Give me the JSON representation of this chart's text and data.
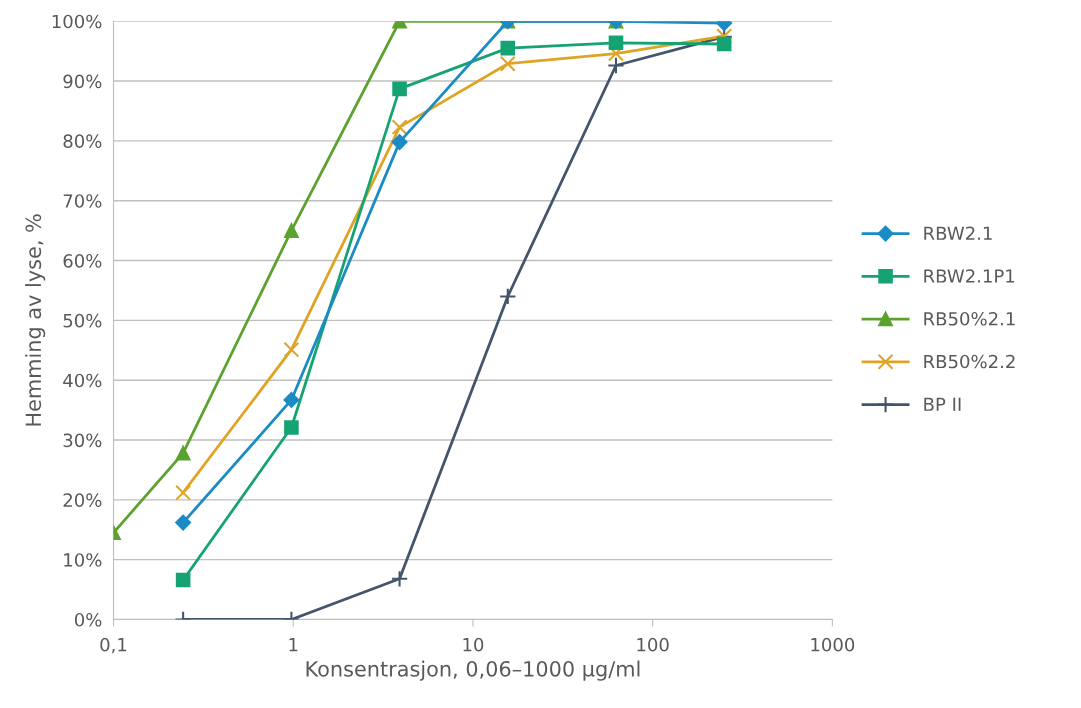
{
  "chart_data": {
    "type": "line",
    "xlabel": "Konsentrasjon, 0,06–1000 µg/ml",
    "ylabel": "Hemming av lyse, %",
    "log": "x",
    "grid": "y",
    "legend": "right",
    "xlim": [
      0.1,
      1000
    ],
    "xticks": [
      {
        "value": 0.1,
        "label": "0,1"
      },
      1,
      10,
      100,
      1000
    ],
    "ylim": [
      0,
      100
    ],
    "yticks": [
      {
        "value": 0,
        "label": "0%"
      },
      {
        "value": 10,
        "label": "10%"
      },
      {
        "value": 20,
        "label": "20%"
      },
      {
        "value": 30,
        "label": "30%"
      },
      {
        "value": 40,
        "label": "40%"
      },
      {
        "value": 50,
        "label": "50%"
      },
      {
        "value": 60,
        "label": "60%"
      },
      {
        "value": 70,
        "label": "70%"
      },
      {
        "value": 80,
        "label": "80%"
      },
      {
        "value": 90,
        "label": "90%"
      },
      {
        "value": 100,
        "label": "100%"
      }
    ],
    "series": [
      {
        "name": "RBW2.1",
        "color": "#1a8bc4",
        "marker": "diamond",
        "x": [
          0.244,
          0.977,
          3.906,
          15.625,
          62.5,
          250
        ],
        "values": [
          16.2,
          36.7,
          79.8,
          100,
          100,
          99.7
        ]
      },
      {
        "name": "RBW2.1P1",
        "color": "#16a373",
        "marker": "square",
        "x": [
          0.244,
          0.977,
          3.906,
          15.625,
          62.5,
          250
        ],
        "values": [
          6.6,
          32.1,
          88.7,
          95.5,
          96.4,
          96.2
        ]
      },
      {
        "name": "RB50%2.1",
        "color": "#5ba22f",
        "marker": "triangle",
        "x": [
          0.1,
          0.244,
          0.977,
          3.906,
          15.625,
          62.5
        ],
        "values": [
          14.5,
          27.8,
          65,
          100,
          100,
          100
        ]
      },
      {
        "name": "RB50%2.2",
        "color": "#e0a424",
        "marker": "cross",
        "x": [
          0.244,
          0.977,
          3.906,
          15.625,
          62.5,
          250
        ],
        "values": [
          21.2,
          45.1,
          82.3,
          92.9,
          94.6,
          97.5
        ]
      },
      {
        "name": "BP II",
        "color": "#44546a",
        "marker": "plus",
        "x": [
          0.244,
          0.977,
          3.906,
          15.625,
          62.5,
          250
        ],
        "values": [
          0,
          0,
          6.8,
          54,
          92.6,
          97.4
        ]
      }
    ]
  }
}
